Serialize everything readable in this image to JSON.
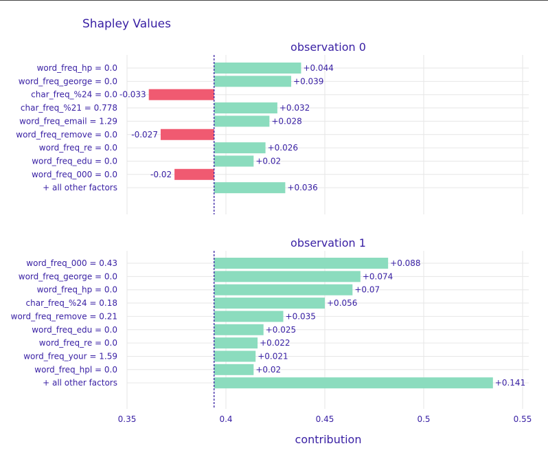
{
  "chart_data": {
    "type": "bar",
    "title": "Shapley Values",
    "xlabel": "contribution",
    "xlim": [
      0.35,
      0.55
    ],
    "xticks": [
      0.35,
      0.4,
      0.45,
      0.5,
      0.55
    ],
    "xtick_labels": [
      "0.35",
      "0.4",
      "0.45",
      "0.5",
      "0.55"
    ],
    "baseline": 0.394,
    "colors": {
      "positive": "#8bdcbe",
      "negative": "#f05a71",
      "baseline": "#371ea3",
      "text": "#371ea3",
      "grid": "#e6e6e6"
    },
    "panels": [
      {
        "subtitle": "observation 0",
        "categories": [
          "word_freq_hp = 0.0",
          "word_freq_george = 0.0",
          "char_freq_%24 = 0.0",
          "char_freq_%21 = 0.778",
          "word_freq_email = 1.29",
          "word_freq_remove = 0.0",
          "word_freq_re = 0.0",
          "word_freq_edu = 0.0",
          "word_freq_000 = 0.0",
          "+ all other factors"
        ],
        "values": [
          0.044,
          0.039,
          -0.033,
          0.032,
          0.028,
          -0.027,
          0.026,
          0.02,
          -0.02,
          0.036
        ],
        "labels": [
          "+0.044",
          "+0.039",
          "-0.033",
          "+0.032",
          "+0.028",
          "-0.027",
          "+0.026",
          "+0.02",
          "-0.02",
          "+0.036"
        ]
      },
      {
        "subtitle": "observation 1",
        "categories": [
          "word_freq_000 = 0.43",
          "word_freq_george = 0.0",
          "word_freq_hp = 0.0",
          "char_freq_%24 = 0.18",
          "word_freq_remove = 0.21",
          "word_freq_edu = 0.0",
          "word_freq_re = 0.0",
          "word_freq_your = 1.59",
          "word_freq_hpl = 0.0",
          "+ all other factors"
        ],
        "values": [
          0.088,
          0.074,
          0.07,
          0.056,
          0.035,
          0.025,
          0.022,
          0.021,
          0.02,
          0.141
        ],
        "labels": [
          "+0.088",
          "+0.074",
          "+0.07",
          "+0.056",
          "+0.035",
          "+0.025",
          "+0.022",
          "+0.021",
          "+0.02",
          "+0.141"
        ]
      }
    ]
  }
}
